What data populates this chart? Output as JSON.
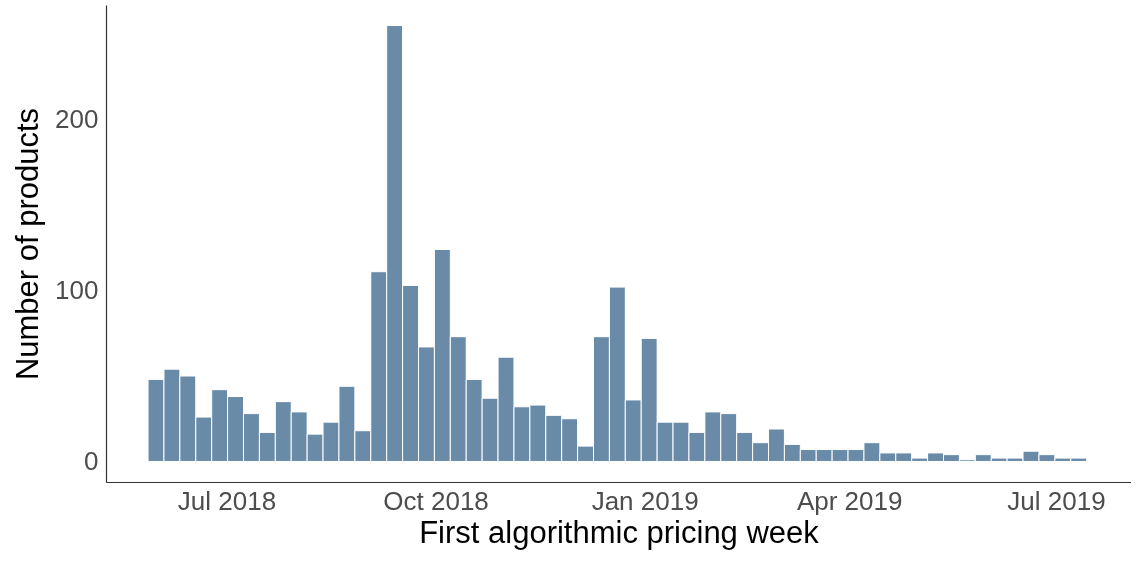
{
  "chart_data": {
    "type": "bar",
    "xlabel": "First algorithmic pricing week",
    "ylabel": "Number of products",
    "x": [
      "2018-05-31",
      "2018-06-07",
      "2018-06-14",
      "2018-06-21",
      "2018-06-28",
      "2018-07-05",
      "2018-07-12",
      "2018-07-19",
      "2018-07-26",
      "2018-08-02",
      "2018-08-09",
      "2018-08-16",
      "2018-08-23",
      "2018-08-30",
      "2018-09-06",
      "2018-09-13",
      "2018-09-20",
      "2018-09-27",
      "2018-10-04",
      "2018-10-11",
      "2018-10-18",
      "2018-10-25",
      "2018-11-01",
      "2018-11-08",
      "2018-11-15",
      "2018-11-22",
      "2018-11-29",
      "2018-12-06",
      "2018-12-13",
      "2018-12-20",
      "2018-12-27",
      "2019-01-03",
      "2019-01-10",
      "2019-01-17",
      "2019-01-24",
      "2019-01-31",
      "2019-02-07",
      "2019-02-14",
      "2019-02-21",
      "2019-02-28",
      "2019-03-07",
      "2019-03-14",
      "2019-03-21",
      "2019-03-28",
      "2019-04-04",
      "2019-04-11",
      "2019-04-18",
      "2019-04-25",
      "2019-05-02",
      "2019-05-09",
      "2019-05-16",
      "2019-05-23",
      "2019-05-30",
      "2019-06-06",
      "2019-06-13",
      "2019-06-20",
      "2019-06-27",
      "2019-07-04",
      "2019-07-11"
    ],
    "values": [
      48,
      54,
      50,
      26,
      42,
      38,
      28,
      17,
      35,
      29,
      16,
      23,
      44,
      18,
      111,
      255,
      103,
      67,
      124,
      73,
      48,
      37,
      61,
      32,
      33,
      27,
      25,
      9,
      73,
      102,
      36,
      72,
      23,
      23,
      17,
      29,
      28,
      17,
      11,
      19,
      10,
      7,
      7,
      7,
      7,
      11,
      5,
      5,
      2,
      5,
      4,
      1,
      4,
      2,
      2,
      6,
      4,
      2,
      2
    ],
    "color": "#6a8ba8",
    "xlim": [
      "2018-05-09",
      "2019-08-03"
    ],
    "xticks": [
      {
        "value": "2018-07-01",
        "label": "Jul 2018"
      },
      {
        "value": "2018-10-01",
        "label": "Oct 2018"
      },
      {
        "value": "2019-01-01",
        "label": "Jan 2019"
      },
      {
        "value": "2019-04-01",
        "label": "Apr 2019"
      },
      {
        "value": "2019-07-01",
        "label": "Jul 2019"
      }
    ],
    "ylim": [
      -12,
      267
    ],
    "yticks": [
      0,
      100,
      200
    ]
  }
}
